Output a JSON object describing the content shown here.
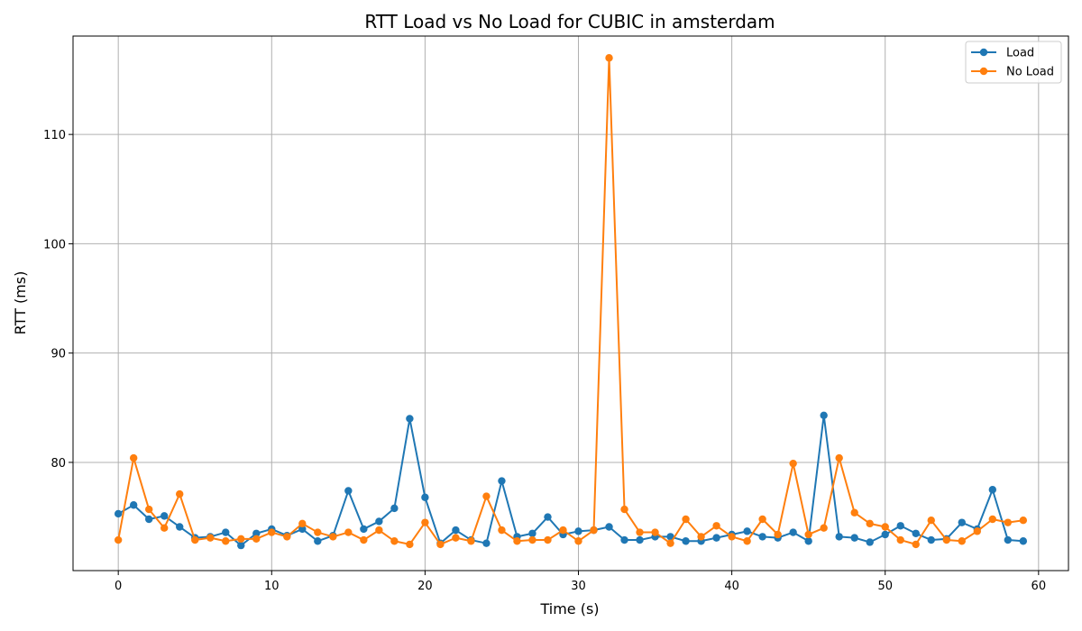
{
  "chart_data": {
    "type": "line",
    "title": "RTT Load vs No Load for CUBIC in amsterdam",
    "xlabel": "Time (s)",
    "ylabel": "RTT (ms)",
    "xlim": [
      -2.95,
      61.95
    ],
    "ylim": [
      70.1,
      119.0
    ],
    "xticks": [
      0,
      10,
      20,
      30,
      40,
      50,
      60
    ],
    "yticks": [
      80,
      90,
      100,
      110
    ],
    "grid": true,
    "legend_position": "top-right",
    "x": [
      0,
      1,
      2,
      3,
      4,
      5,
      6,
      7,
      8,
      9,
      10,
      11,
      12,
      13,
      14,
      15,
      16,
      17,
      18,
      19,
      20,
      21,
      22,
      23,
      24,
      25,
      26,
      27,
      28,
      29,
      30,
      31,
      32,
      33,
      34,
      35,
      36,
      37,
      38,
      39,
      40,
      41,
      42,
      43,
      44,
      45,
      46,
      47,
      48,
      49,
      50,
      51,
      52,
      53,
      54,
      55,
      56,
      57,
      58,
      59
    ],
    "series": [
      {
        "name": "Load",
        "color": "#1f77b4",
        "values": [
          75.3,
          76.1,
          74.8,
          75.1,
          74.1,
          73.1,
          73.2,
          73.6,
          72.4,
          73.5,
          73.9,
          73.3,
          73.9,
          72.8,
          73.3,
          77.4,
          73.9,
          74.6,
          75.8,
          84.0,
          76.8,
          72.6,
          73.8,
          72.9,
          72.6,
          78.3,
          73.2,
          73.5,
          75.0,
          73.4,
          73.7,
          73.8,
          74.1,
          72.9,
          72.9,
          73.2,
          73.2,
          72.8,
          72.8,
          73.1,
          73.4,
          73.7,
          73.2,
          73.1,
          73.6,
          72.8,
          84.3,
          73.2,
          73.1,
          72.7,
          73.4,
          74.2,
          73.5,
          72.9,
          73.0,
          74.5,
          73.9,
          77.5,
          72.9,
          72.8
        ]
      },
      {
        "name": "No Load",
        "color": "#ff7f0e",
        "values": [
          72.9,
          80.4,
          75.7,
          74.0,
          77.1,
          72.9,
          73.1,
          72.8,
          73.0,
          73.0,
          73.6,
          73.2,
          74.4,
          73.6,
          73.2,
          73.6,
          72.9,
          73.8,
          72.8,
          72.5,
          74.5,
          72.5,
          73.1,
          72.8,
          76.9,
          73.8,
          72.8,
          72.9,
          72.9,
          73.8,
          72.8,
          73.8,
          117.0,
          75.7,
          73.6,
          73.6,
          72.6,
          74.8,
          73.2,
          74.2,
          73.2,
          72.8,
          74.8,
          73.4,
          79.9,
          73.4,
          74.0,
          80.4,
          75.4,
          74.4,
          74.1,
          72.9,
          72.5,
          74.7,
          72.9,
          72.8,
          73.7,
          74.8,
          74.5,
          74.7
        ]
      }
    ]
  }
}
